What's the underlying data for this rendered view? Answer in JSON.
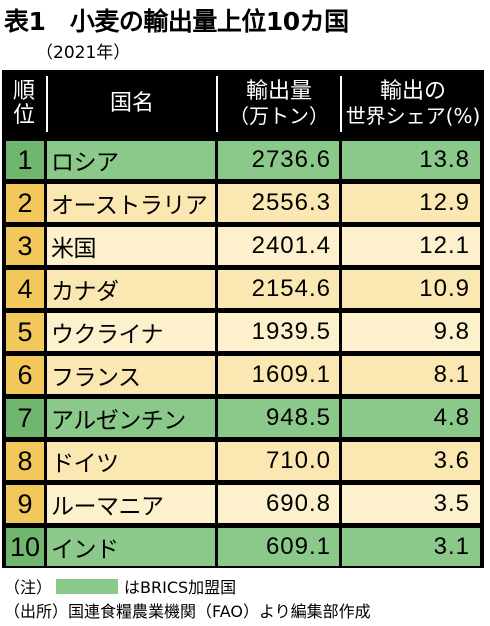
{
  "title": "表1　小麦の輸出量上位10カ国",
  "subtitle": "（2021年）",
  "header": {
    "rank": [
      "順",
      "位"
    ],
    "country": "国名",
    "exports": [
      "輸出量",
      "（万トン）"
    ],
    "share": [
      "輸出の",
      "世界シェア(%)"
    ]
  },
  "colors": {
    "brics_green": "#8bc98b",
    "brics_green_dark": "#71b66f",
    "yellow": "#f3c85a",
    "yellow_light": "#fbe7b2",
    "yellow_pale": "#fdf0cc",
    "header_bg": "#000000"
  },
  "rows": [
    {
      "rank": "1",
      "country": "ロシア",
      "exports": "2736.6",
      "share": "13.8",
      "brics": true
    },
    {
      "rank": "2",
      "country": "オーストラリア",
      "exports": "2556.3",
      "share": "12.9",
      "brics": false
    },
    {
      "rank": "3",
      "country": "米国",
      "exports": "2401.4",
      "share": "12.1",
      "brics": false
    },
    {
      "rank": "4",
      "country": "カナダ",
      "exports": "2154.6",
      "share": "10.9",
      "brics": false
    },
    {
      "rank": "5",
      "country": "ウクライナ",
      "exports": "1939.5",
      "share": "9.8",
      "brics": false
    },
    {
      "rank": "6",
      "country": "フランス",
      "exports": "1609.1",
      "share": "8.1",
      "brics": false
    },
    {
      "rank": "7",
      "country": "アルゼンチン",
      "exports": "948.5",
      "share": "4.8",
      "brics": true
    },
    {
      "rank": "8",
      "country": "ドイツ",
      "exports": "710.0",
      "share": "3.6",
      "brics": false
    },
    {
      "rank": "9",
      "country": "ルーマニア",
      "exports": "690.8",
      "share": "3.5",
      "brics": false
    },
    {
      "rank": "10",
      "country": "インド",
      "exports": "609.1",
      "share": "3.1",
      "brics": true
    }
  ],
  "notes": {
    "note_prefix": "（注）",
    "note_text": "はBRICS加盟国",
    "source": "（出所）国連食糧農業機関（FAO）より編集部作成"
  }
}
